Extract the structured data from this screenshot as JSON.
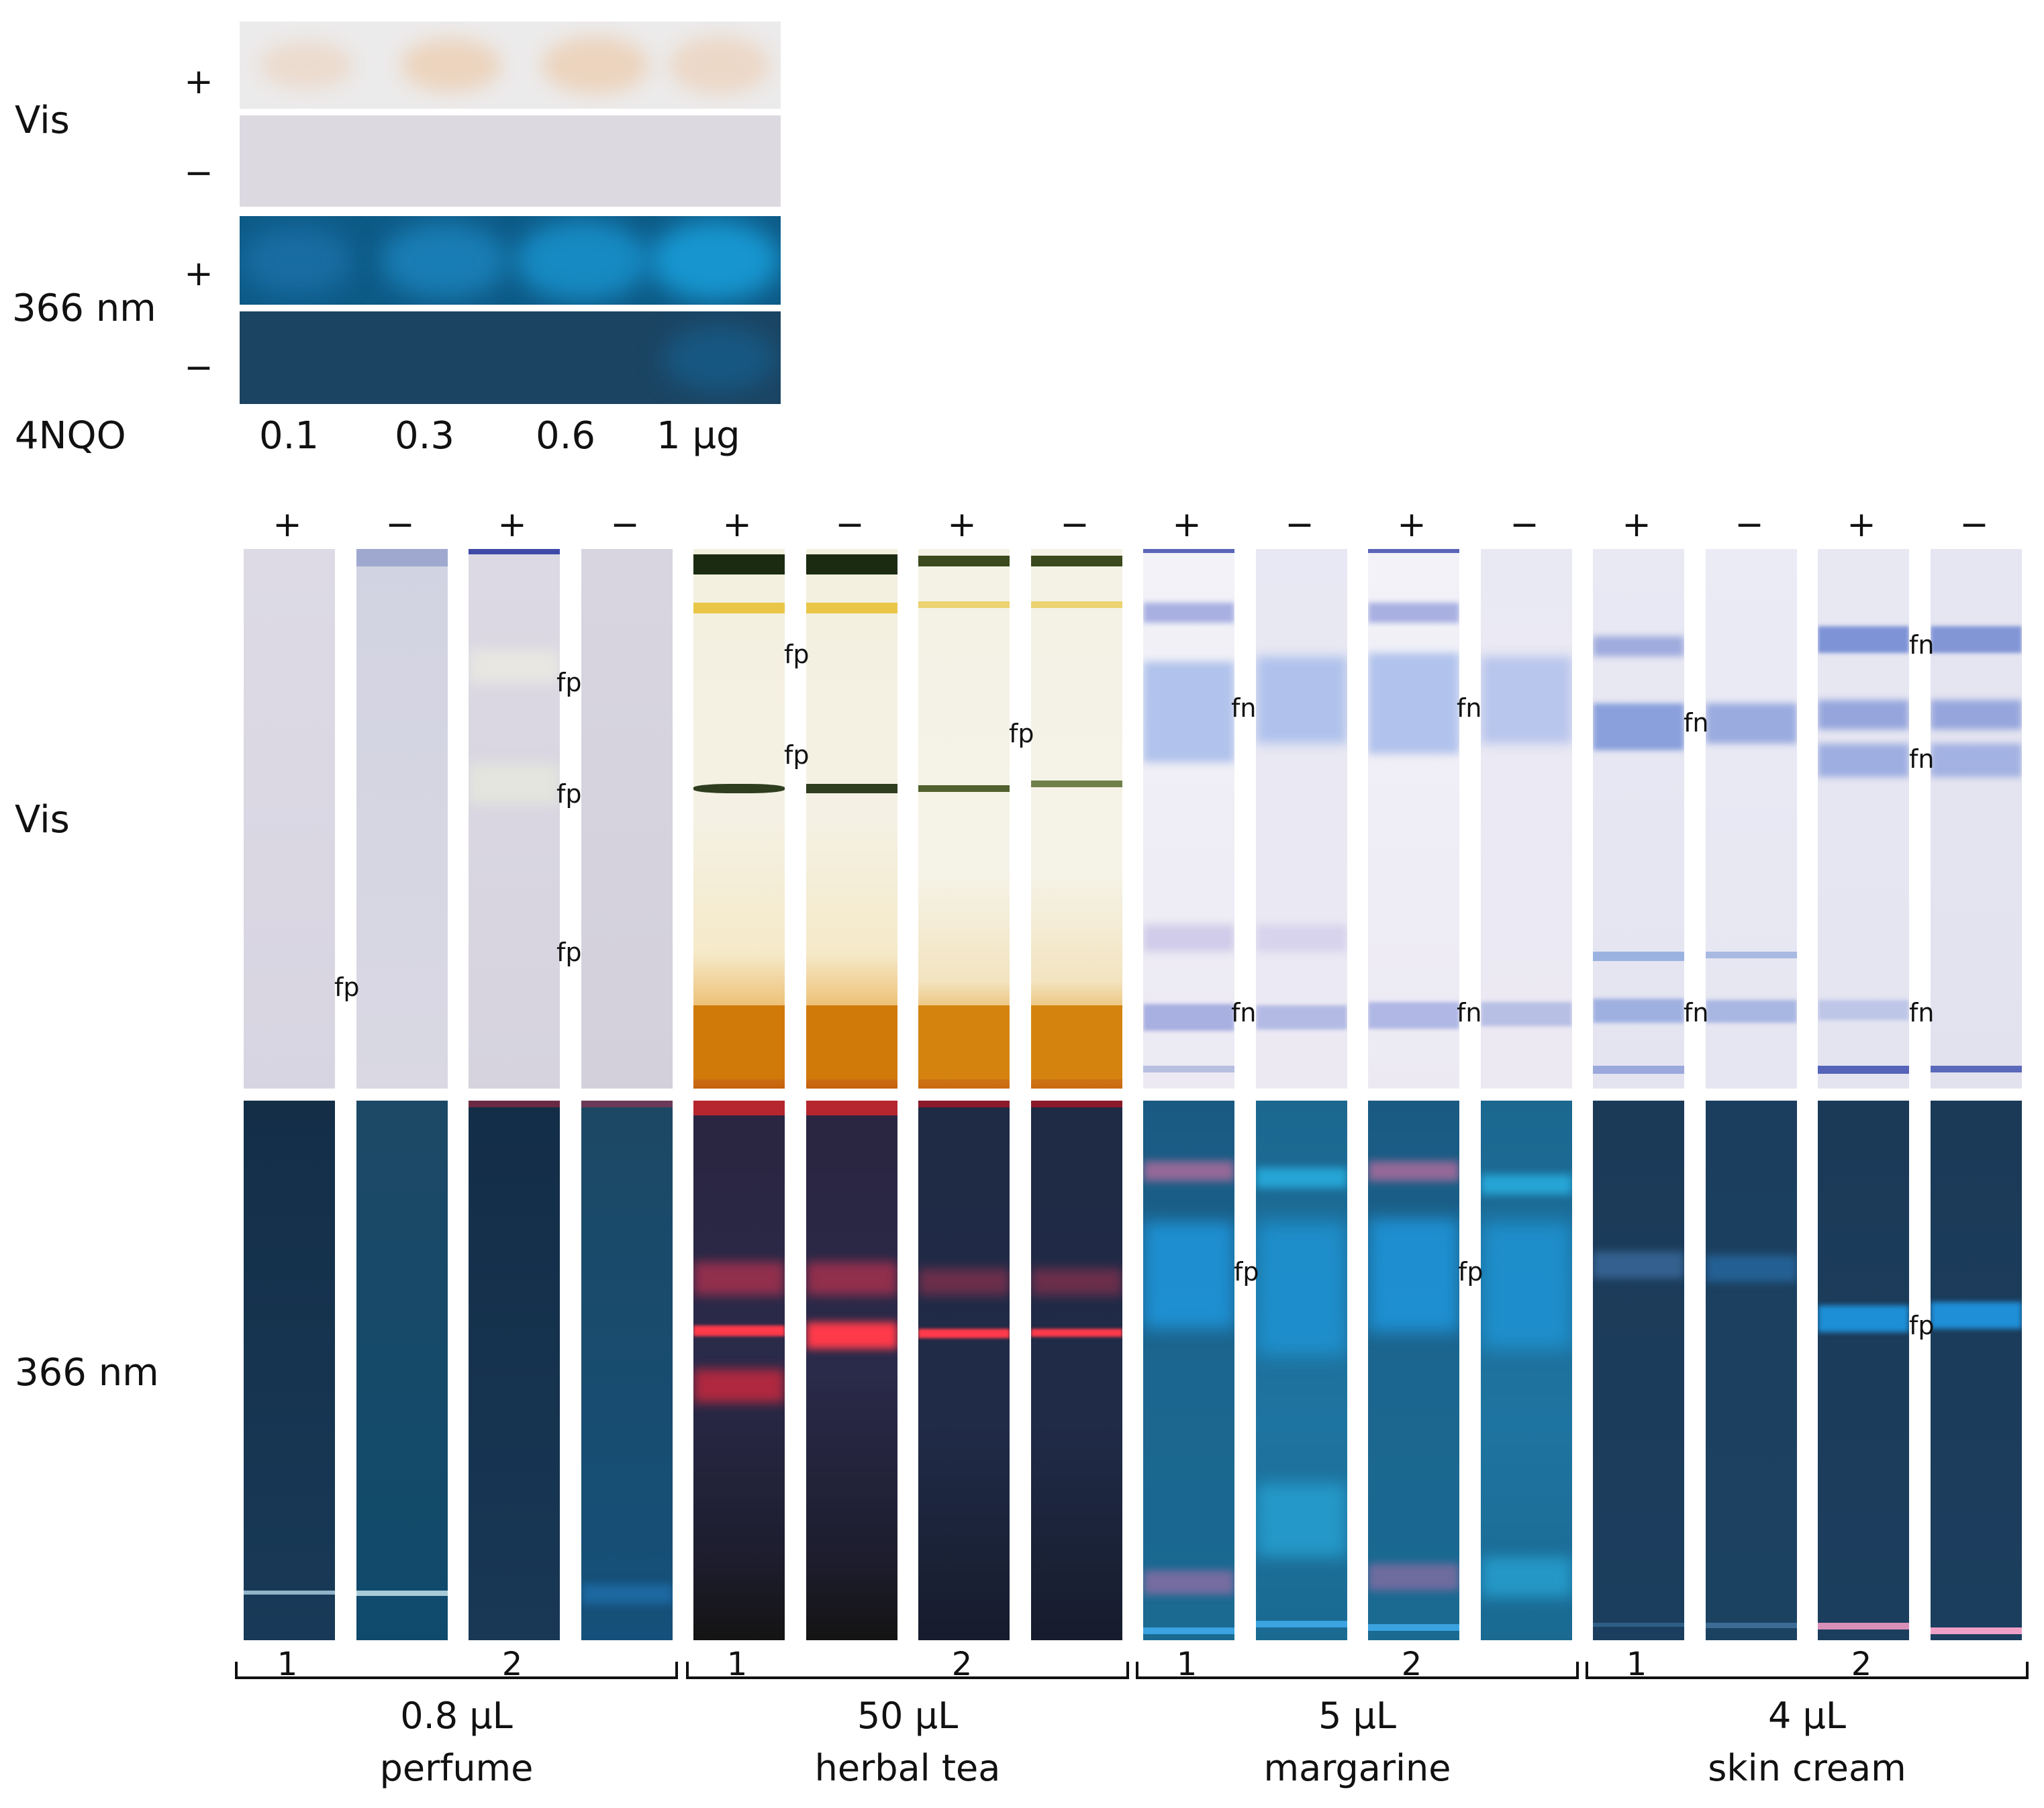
{
  "reference": {
    "row_labels": {
      "vis": "Vis",
      "uv": "366 nm"
    },
    "signs": [
      "+",
      "−",
      "+",
      "−"
    ],
    "compound_label": "4NQO",
    "amounts": [
      "0.1",
      "0.3",
      "0.6",
      "1 µg"
    ]
  },
  "main": {
    "row_labels": {
      "vis": "Vis",
      "uv": "366 nm"
    },
    "lane_signs": [
      "+",
      "−",
      "+",
      "−",
      "+",
      "−",
      "+",
      "−",
      "+",
      "−",
      "+",
      "−",
      "+",
      "−",
      "+",
      "−"
    ],
    "groups": [
      {
        "sample_numbers": [
          "1",
          "2"
        ],
        "volume": "0.8 µL",
        "matrix": "perfume"
      },
      {
        "sample_numbers": [
          "1",
          "2"
        ],
        "volume": "50 µL",
        "matrix": "herbal tea"
      },
      {
        "sample_numbers": [
          "1",
          "2"
        ],
        "volume": "5 µL",
        "matrix": "margarine"
      },
      {
        "sample_numbers": [
          "1",
          "2"
        ],
        "volume": "4 µL",
        "matrix": "skin cream"
      }
    ],
    "annotations": {
      "fp": "fp",
      "fn": "fn"
    }
  },
  "colors": {
    "vis_plate": "#dcd9e6",
    "uv_plate": "#1c3a55",
    "fluorescence_blue": "#1d8fd6",
    "red_fluorescence": "#ff3a4a",
    "orange_zone": "#d97a0c"
  }
}
